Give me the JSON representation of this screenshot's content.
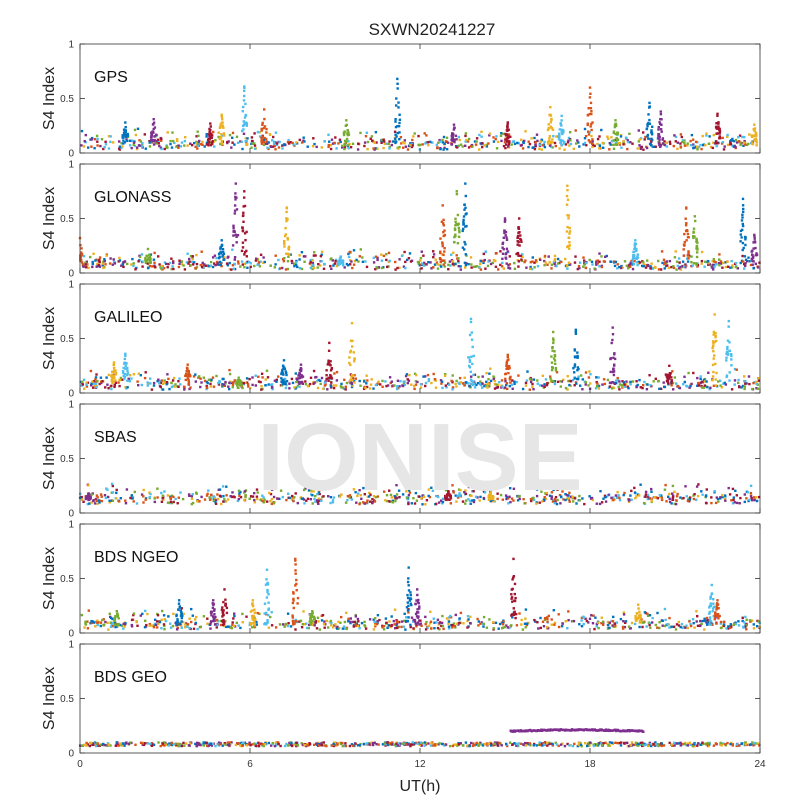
{
  "figure_title": "SXWN20241227",
  "watermark": "IONISE",
  "colors": {
    "series_palette": [
      "#0072BD",
      "#D95319",
      "#EDB120",
      "#7E2F8E",
      "#77AC30",
      "#4DBEEE",
      "#A2142F"
    ],
    "background": "#ffffff",
    "axes": "#333333",
    "watermark": "#e6e6e6"
  },
  "chart_data": [
    {
      "type": "scatter",
      "panel_label": "GPS",
      "ylabel": "S4 Index",
      "xlabel": "",
      "xlim": [
        0,
        24
      ],
      "ylim": [
        0,
        1
      ],
      "xticks": [
        0,
        6,
        12,
        18,
        24
      ],
      "yticks": [
        0,
        0.5,
        1
      ],
      "baseline": 0.07,
      "spikes": [
        [
          1.6,
          0.28
        ],
        [
          2.6,
          0.31
        ],
        [
          4.6,
          0.27
        ],
        [
          5.0,
          0.35
        ],
        [
          5.8,
          0.61
        ],
        [
          6.5,
          0.4
        ],
        [
          9.4,
          0.3
        ],
        [
          11.2,
          0.68
        ],
        [
          13.2,
          0.26
        ],
        [
          15.1,
          0.28
        ],
        [
          16.6,
          0.42
        ],
        [
          17.0,
          0.34
        ],
        [
          18.0,
          0.6
        ],
        [
          18.9,
          0.3
        ],
        [
          20.1,
          0.46
        ],
        [
          20.5,
          0.38
        ],
        [
          22.5,
          0.36
        ],
        [
          23.8,
          0.26
        ]
      ]
    },
    {
      "type": "scatter",
      "panel_label": "GLONASS",
      "ylabel": "S4 Index",
      "xlabel": "",
      "xlim": [
        0,
        24
      ],
      "ylim": [
        0,
        1
      ],
      "xticks": [
        0,
        6,
        12,
        18,
        24
      ],
      "yticks": [
        0,
        0.5,
        1
      ],
      "baseline": 0.07,
      "spikes": [
        [
          0.0,
          0.32
        ],
        [
          2.4,
          0.22
        ],
        [
          5.0,
          0.3
        ],
        [
          5.5,
          0.82
        ],
        [
          5.8,
          0.75
        ],
        [
          7.3,
          0.6
        ],
        [
          9.2,
          0.15
        ],
        [
          12.8,
          0.62
        ],
        [
          13.3,
          0.75
        ],
        [
          13.6,
          0.82
        ],
        [
          15.0,
          0.5
        ],
        [
          15.5,
          0.5
        ],
        [
          17.2,
          0.8
        ],
        [
          19.6,
          0.3
        ],
        [
          21.4,
          0.6
        ],
        [
          21.7,
          0.52
        ],
        [
          23.4,
          0.68
        ],
        [
          23.8,
          0.35
        ]
      ]
    },
    {
      "type": "scatter",
      "panel_label": "GALILEO",
      "ylabel": "S4 Index",
      "xlabel": "",
      "xlim": [
        0,
        24
      ],
      "ylim": [
        0,
        1
      ],
      "xticks": [
        0,
        6,
        12,
        18,
        24
      ],
      "yticks": [
        0,
        0.5,
        1
      ],
      "baseline": 0.07,
      "spikes": [
        [
          1.2,
          0.28
        ],
        [
          1.6,
          0.36
        ],
        [
          3.8,
          0.26
        ],
        [
          5.6,
          0.14
        ],
        [
          7.2,
          0.3
        ],
        [
          7.8,
          0.26
        ],
        [
          8.8,
          0.46
        ],
        [
          9.6,
          0.64
        ],
        [
          13.8,
          0.68
        ],
        [
          15.1,
          0.35
        ],
        [
          16.7,
          0.56
        ],
        [
          17.5,
          0.58
        ],
        [
          18.8,
          0.6
        ],
        [
          20.8,
          0.25
        ],
        [
          22.4,
          0.72
        ],
        [
          22.9,
          0.66
        ]
      ]
    },
    {
      "type": "scatter",
      "panel_label": "SBAS",
      "ylabel": "S4 Index",
      "xlabel": "",
      "xlim": [
        0,
        24
      ],
      "ylim": [
        0,
        1
      ],
      "xticks": [
        0,
        6,
        12,
        18,
        24
      ],
      "yticks": [
        0,
        0.5,
        1
      ],
      "baseline": 0.12,
      "spikes": [
        [
          0.3,
          0.18
        ],
        [
          13.0,
          0.2
        ],
        [
          14.5,
          0.19
        ]
      ]
    },
    {
      "type": "scatter",
      "panel_label": "BDS NGEO",
      "ylabel": "S4 Index",
      "xlabel": "",
      "xlim": [
        0,
        24
      ],
      "ylim": [
        0,
        1
      ],
      "xticks": [
        0,
        6,
        12,
        18,
        24
      ],
      "yticks": [
        0,
        0.5,
        1
      ],
      "baseline": 0.07,
      "spikes": [
        [
          1.3,
          0.2
        ],
        [
          3.5,
          0.3
        ],
        [
          4.7,
          0.3
        ],
        [
          5.1,
          0.4
        ],
        [
          6.1,
          0.3
        ],
        [
          6.6,
          0.58
        ],
        [
          7.6,
          0.68
        ],
        [
          8.2,
          0.2
        ],
        [
          11.6,
          0.6
        ],
        [
          11.9,
          0.4
        ],
        [
          15.3,
          0.68
        ],
        [
          19.7,
          0.26
        ],
        [
          22.3,
          0.44
        ],
        [
          22.5,
          0.3
        ]
      ]
    },
    {
      "type": "scatter",
      "panel_label": "BDS GEO",
      "ylabel": "S4 Index",
      "xlabel": "UT(h)",
      "xlim": [
        0,
        24
      ],
      "ylim": [
        0,
        1
      ],
      "xticks": [
        0,
        6,
        12,
        18,
        24
      ],
      "yticks": [
        0,
        0.5,
        1
      ],
      "baseline": 0.08,
      "arc": {
        "x_start": 15.2,
        "x_end": 19.9,
        "y": 0.2
      },
      "spikes": []
    }
  ]
}
